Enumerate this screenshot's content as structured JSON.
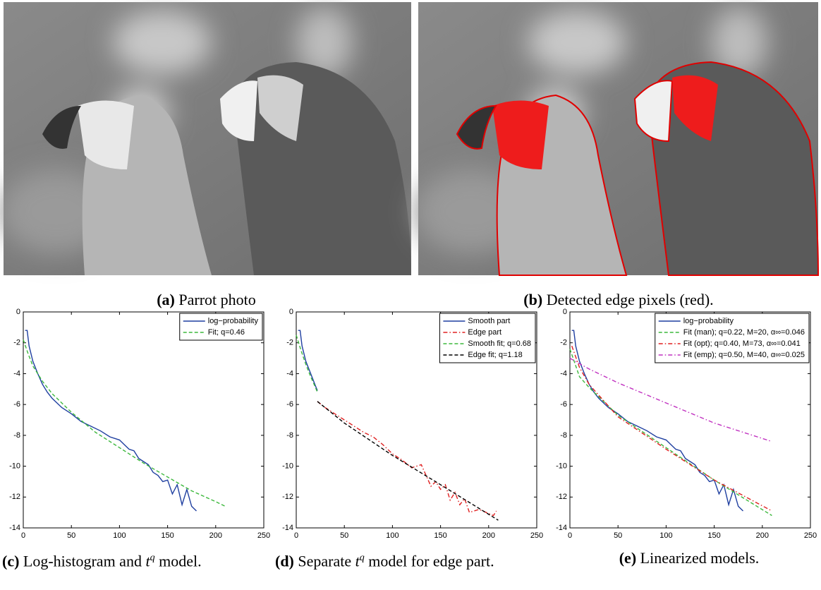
{
  "photos": [
    {
      "label": "(a)",
      "caption": "Parrot photo"
    },
    {
      "label": "(b)",
      "caption": "Detected edge pixels (red)."
    }
  ],
  "chart_data": [
    {
      "type": "line",
      "legend": "upper right",
      "caption": {
        "label": "(c)",
        "text": "Log-histogram and ",
        "var": "t",
        "sup": "q",
        "rest": " model."
      },
      "xlim": [
        0,
        250
      ],
      "ylim": [
        -14,
        0
      ],
      "xticks": [
        0,
        50,
        100,
        150,
        200,
        250
      ],
      "yticks": [
        0,
        -2,
        -4,
        -6,
        -8,
        -10,
        -12,
        -14
      ],
      "series": [
        {
          "name": "log−probability",
          "color": "#1f3fa0",
          "style": "solid",
          "x": [
            2,
            4,
            6,
            10,
            15,
            20,
            25,
            30,
            40,
            50,
            60,
            70,
            80,
            90,
            100,
            105,
            110,
            115,
            120,
            125,
            130,
            135,
            140,
            145,
            150,
            155,
            160,
            165,
            170,
            175,
            180
          ],
          "values": [
            -1.2,
            -1.2,
            -2.2,
            -3.2,
            -4.0,
            -4.7,
            -5.2,
            -5.6,
            -6.2,
            -6.6,
            -7.1,
            -7.4,
            -7.7,
            -8.1,
            -8.3,
            -8.6,
            -8.9,
            -9.0,
            -9.5,
            -9.7,
            -9.9,
            -10.4,
            -10.6,
            -11.0,
            -10.9,
            -11.8,
            -11.2,
            -12.5,
            -11.5,
            -12.6,
            -12.9
          ]
        },
        {
          "name": "Fit; q=0.46",
          "color": "#3cb83c",
          "style": "dashed",
          "x": [
            0,
            5,
            10,
            20,
            30,
            50,
            75,
            100,
            125,
            150,
            175,
            200,
            210
          ],
          "values": [
            -1.8,
            -2.7,
            -3.5,
            -4.5,
            -5.3,
            -6.5,
            -7.8,
            -8.8,
            -9.8,
            -10.7,
            -11.6,
            -12.3,
            -12.6
          ]
        }
      ]
    },
    {
      "type": "line",
      "legend": "upper right",
      "caption": {
        "label": "(d)",
        "text": "Separate ",
        "var": "t",
        "sup": "q",
        "rest": " model for edge part."
      },
      "xlim": [
        0,
        250
      ],
      "ylim": [
        -14,
        0
      ],
      "xticks": [
        0,
        50,
        100,
        150,
        200,
        250
      ],
      "yticks": [
        0,
        -2,
        -4,
        -6,
        -8,
        -10,
        -12,
        -14
      ],
      "series": [
        {
          "name": "Smooth part",
          "color": "#1f3fa0",
          "style": "solid",
          "x": [
            2,
            4,
            6,
            10,
            15,
            20,
            22
          ],
          "values": [
            -1.2,
            -1.2,
            -2.2,
            -3.2,
            -4.0,
            -4.8,
            -5.1
          ]
        },
        {
          "name": "Edge part",
          "color": "#e02020",
          "style": "dashdot",
          "x": [
            22,
            30,
            40,
            50,
            60,
            70,
            80,
            90,
            100,
            110,
            120,
            130,
            135,
            140,
            145,
            150,
            155,
            160,
            165,
            170,
            175,
            180,
            190,
            205,
            208
          ],
          "values": [
            -5.8,
            -6.2,
            -6.6,
            -7.0,
            -7.4,
            -7.8,
            -8.1,
            -8.6,
            -9.2,
            -9.6,
            -10.1,
            -9.9,
            -10.6,
            -11.3,
            -11.0,
            -11.5,
            -11.2,
            -12.2,
            -11.7,
            -12.5,
            -12.1,
            -13.0,
            -12.8,
            -13.2,
            -12.9
          ]
        },
        {
          "name": "Smooth fit; q=0.68",
          "color": "#3cb83c",
          "style": "dashed",
          "x": [
            0,
            5,
            10,
            15,
            20,
            22
          ],
          "values": [
            -1.5,
            -2.5,
            -3.4,
            -4.2,
            -4.9,
            -5.2
          ]
        },
        {
          "name": "Edge fit; q=1.18",
          "color": "#000000",
          "style": "dashed",
          "x": [
            22,
            50,
            100,
            150,
            210
          ],
          "values": [
            -5.8,
            -7.2,
            -9.3,
            -11.2,
            -13.5
          ]
        }
      ]
    },
    {
      "type": "line",
      "legend": "upper right",
      "caption": {
        "label": "(e)",
        "text": "Linearized models."
      },
      "xlim": [
        0,
        250
      ],
      "ylim": [
        -14,
        0
      ],
      "xticks": [
        0,
        50,
        100,
        150,
        200,
        250
      ],
      "yticks": [
        0,
        -2,
        -4,
        -6,
        -8,
        -10,
        -12,
        -14
      ],
      "series": [
        {
          "name": "log−probability",
          "color": "#1f3fa0",
          "style": "solid",
          "x": [
            2,
            4,
            6,
            10,
            15,
            20,
            25,
            30,
            40,
            50,
            60,
            70,
            80,
            90,
            100,
            105,
            110,
            115,
            120,
            125,
            130,
            135,
            140,
            145,
            150,
            155,
            160,
            165,
            170,
            175,
            180
          ],
          "values": [
            -1.2,
            -1.2,
            -2.2,
            -3.2,
            -4.0,
            -4.7,
            -5.2,
            -5.6,
            -6.2,
            -6.6,
            -7.1,
            -7.4,
            -7.7,
            -8.1,
            -8.3,
            -8.6,
            -8.9,
            -9.0,
            -9.5,
            -9.7,
            -9.9,
            -10.4,
            -10.6,
            -11.0,
            -10.9,
            -11.8,
            -11.2,
            -12.5,
            -11.5,
            -12.6,
            -12.9
          ]
        },
        {
          "name": "Fit (man); q=0.22, M=20, α∞=0.046",
          "color": "#3cb83c",
          "style": "dashed",
          "x": [
            0,
            10,
            20,
            50,
            100,
            150,
            210
          ],
          "values": [
            -2.4,
            -4.2,
            -4.9,
            -6.7,
            -8.8,
            -10.9,
            -13.2
          ]
        },
        {
          "name": "Fit (opt); q=0.40, M=73, α∞=0.041",
          "color": "#e02020",
          "style": "dashdot",
          "x": [
            2,
            10,
            20,
            50,
            100,
            150,
            210
          ],
          "values": [
            -2.2,
            -3.6,
            -4.7,
            -6.8,
            -8.9,
            -10.9,
            -12.9
          ]
        },
        {
          "name": "Fit (emp); q=0.50, M=40, α∞=0.025",
          "color": "#c030c0",
          "style": "dashdot",
          "x": [
            0,
            20,
            50,
            100,
            150,
            210
          ],
          "values": [
            -3.0,
            -3.7,
            -4.6,
            -5.9,
            -7.2,
            -8.4
          ]
        }
      ]
    }
  ]
}
